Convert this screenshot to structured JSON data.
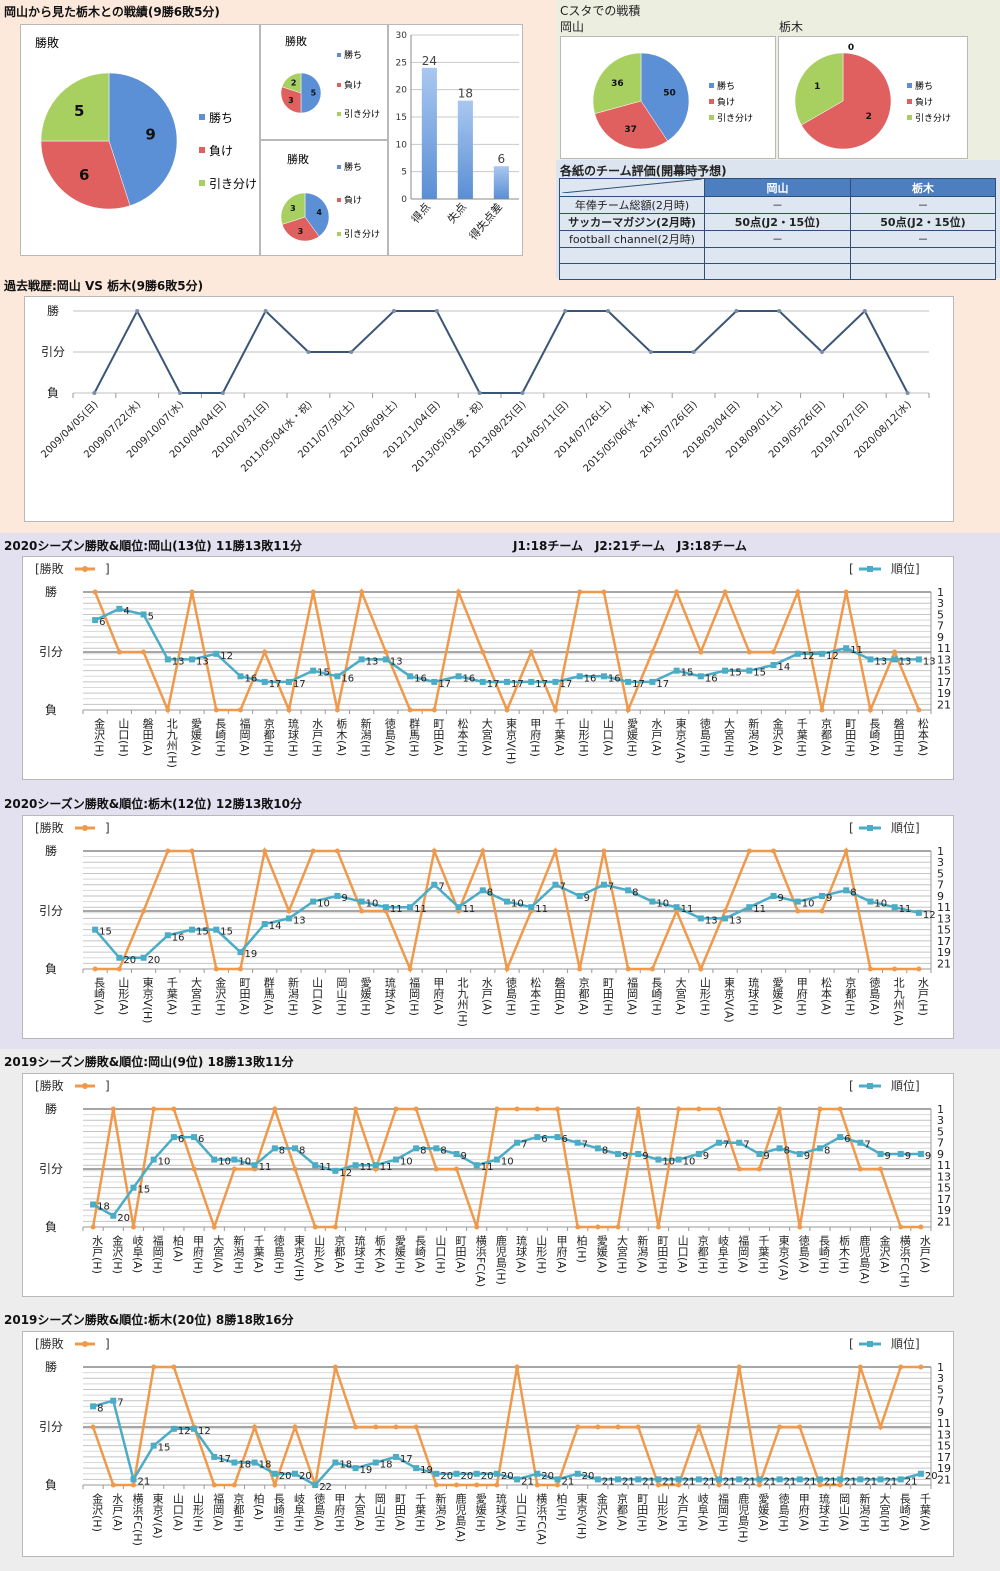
{
  "header": {
    "main_title": "岡山から見た栃木との戦績(9勝6敗5分)",
    "cstadium_title": "Cスタでの戦積",
    "okayama_label": "岡山",
    "tochigi_label": "栃木",
    "eval_title": "各紙のチーム評価(開幕時予想)",
    "history_title": "過去戦歴:岡山 VS 栃木(9勝6敗5分)",
    "league_info": "J1:18チーム　J2:21チーム　J3:18チーム"
  },
  "legend": {
    "win": "勝ち",
    "loss": "負け",
    "draw": "引き分け",
    "result_series": "勝敗",
    "rank_series": "順位"
  },
  "colors": {
    "win": "#5b8fd6",
    "loss": "#e06060",
    "draw": "#a8d060",
    "result_line": "#f0994a",
    "rank_line": "#4bacc6",
    "history_line": "#3b5577",
    "bar": "#5a8ed4"
  },
  "eval_table": {
    "headers": [
      "",
      "岡山",
      "栃木"
    ],
    "rows": [
      [
        "年俸チーム総額(2月時)",
        "－",
        "－"
      ],
      [
        "サッカーマガジン(2月時)",
        "50点(J2・15位)",
        "50点(J2・15位)"
      ],
      [
        "football channel(2月時)",
        "－",
        "－"
      ],
      [
        "",
        "",
        ""
      ],
      [
        "",
        "",
        ""
      ]
    ]
  },
  "chart_data": [
    {
      "id": "h2h-pie",
      "type": "pie",
      "title": "勝敗",
      "labels": [
        "勝ち",
        "負け",
        "引き分け"
      ],
      "values": [
        9,
        6,
        5
      ]
    },
    {
      "id": "h2h-pie-home",
      "type": "pie",
      "title": "勝敗",
      "labels": [
        "勝ち",
        "負け",
        "引き分け"
      ],
      "values": [
        5,
        3,
        2
      ]
    },
    {
      "id": "h2h-pie-away",
      "type": "pie",
      "title": "勝敗",
      "labels": [
        "勝ち",
        "負け",
        "引き分け"
      ],
      "values": [
        4,
        3,
        3
      ]
    },
    {
      "id": "h2h-goals",
      "type": "bar",
      "title": "",
      "categories": [
        "得点",
        "失点",
        "得失点差"
      ],
      "values": [
        24,
        18,
        6
      ],
      "ylim": [
        0,
        30
      ],
      "yticks": [
        0,
        5,
        10,
        15,
        20,
        25,
        30
      ]
    },
    {
      "id": "cstadium-okayama",
      "type": "pie",
      "title": "岡山",
      "labels": [
        "勝ち",
        "負け",
        "引き分け"
      ],
      "values": [
        50,
        37,
        36
      ]
    },
    {
      "id": "cstadium-tochigi",
      "type": "pie",
      "title": "栃木",
      "labels": [
        "勝ち",
        "負け",
        "引き分け"
      ],
      "values": [
        0,
        2,
        1
      ]
    },
    {
      "id": "history",
      "type": "line",
      "title": "過去戦歴:岡山 VS 栃木(9勝6敗5分)",
      "yticks": [
        "負",
        "引分",
        "勝"
      ],
      "x": [
        "2009/04/05(日)",
        "2009/07/22(水)",
        "2009/10/07(水)",
        "2010/04/04(日)",
        "2010/10/31(日)",
        "2011/05/04(水・祝)",
        "2011/07/30(土)",
        "2012/06/09(土)",
        "2012/11/04(日)",
        "2013/05/03(金・祝)",
        "2013/08/25(日)",
        "2014/05/11(日)",
        "2014/07/26(土)",
        "2015/05/06(水・休)",
        "2015/07/26(日)",
        "2018/03/04(日)",
        "2018/09/01(土)",
        "2019/05/26(日)",
        "2019/10/27(日)",
        "2020/08/12(水)"
      ],
      "results": [
        "L",
        "W",
        "L",
        "L",
        "W",
        "D",
        "D",
        "W",
        "W",
        "L",
        "L",
        "W",
        "W",
        "D",
        "D",
        "W",
        "W",
        "D",
        "W",
        "L"
      ]
    },
    {
      "id": "season-2020-okayama",
      "type": "line",
      "title": "2020シーズン勝敗&順位:岡山(13位) 11勝13敗11分",
      "left_yticks": [
        "負",
        "引分",
        "勝"
      ],
      "right_yticks": [
        1,
        3,
        5,
        7,
        9,
        11,
        13,
        15,
        17,
        19,
        21
      ],
      "rank_range": [
        1,
        22
      ],
      "x": [
        "金沢(H)",
        "山口(H)",
        "磐田(A)",
        "北九州(H)",
        "愛媛(A)",
        "長崎(H)",
        "福岡(A)",
        "京都(H)",
        "琉球(H)",
        "水戸(H)",
        "栃木(A)",
        "新潟(H)",
        "徳島(A)",
        "群馬(H)",
        "町田(A)",
        "松本(H)",
        "大宮(A)",
        "東京V(H)",
        "甲府(H)",
        "千葉(A)",
        "山形(H)",
        "山口(A)",
        "愛媛(H)",
        "水戸(A)",
        "東京V(A)",
        "徳島(H)",
        "大宮(H)",
        "新潟(A)",
        "金沢(A)",
        "千葉(H)",
        "京都(A)",
        "町田(H)",
        "長崎(A)",
        "磐田(H)",
        "松本(A)"
      ],
      "results": [
        "W",
        "D",
        "D",
        "L",
        "W",
        "L",
        "L",
        "D",
        "L",
        "W",
        "L",
        "W",
        "D",
        "L",
        "L",
        "W",
        "D",
        "L",
        "D",
        "L",
        "W",
        "W",
        "L",
        "D",
        "W",
        "D",
        "W",
        "D",
        "D",
        "W",
        "L",
        "W",
        "L",
        "D",
        "L"
      ],
      "ranks": [
        6,
        4,
        5,
        13,
        13,
        12,
        16,
        17,
        17,
        15,
        16,
        13,
        13,
        16,
        17,
        16,
        17,
        17,
        17,
        17,
        16,
        16,
        17,
        17,
        15,
        16,
        15,
        15,
        14,
        12,
        12,
        11,
        13,
        13,
        13
      ]
    },
    {
      "id": "season-2020-tochigi",
      "type": "line",
      "title": "2020シーズン勝敗&順位:栃木(12位) 12勝13敗10分",
      "left_yticks": [
        "負",
        "引分",
        "勝"
      ],
      "right_yticks": [
        1,
        3,
        5,
        7,
        9,
        11,
        13,
        15,
        17,
        19,
        21
      ],
      "rank_range": [
        1,
        22
      ],
      "x": [
        "長崎(A)",
        "山形(A)",
        "東京V(H)",
        "千葉(A)",
        "大宮(H)",
        "金沢(H)",
        "町田(A)",
        "群馬(A)",
        "新潟(H)",
        "山口(A)",
        "岡山(H)",
        "愛媛(H)",
        "琉球(A)",
        "福岡(H)",
        "甲府(A)",
        "北九州(H)",
        "水戸(A)",
        "徳島(H)",
        "松本(H)",
        "磐田(A)",
        "京都(A)",
        "町田(H)",
        "福岡(A)",
        "長崎(H)",
        "大宮(A)",
        "山形(H)",
        "東京V(A)",
        "琉球(H)",
        "愛媛(A)",
        "甲府(H)",
        "松本(A)",
        "京都(H)",
        "徳島(A)",
        "北九州(A)",
        "水戸(H)"
      ],
      "results": [
        "L",
        "L",
        "D",
        "W",
        "W",
        "L",
        "L",
        "W",
        "D",
        "W",
        "W",
        "D",
        "D",
        "L",
        "W",
        "D",
        "W",
        "L",
        "D",
        "W",
        "L",
        "W",
        "L",
        "L",
        "D",
        "L",
        "D",
        "W",
        "W",
        "D",
        "D",
        "W",
        "L",
        "L",
        "L"
      ],
      "ranks": [
        15,
        20,
        20,
        16,
        15,
        15,
        19,
        14,
        13,
        10,
        9,
        10,
        11,
        11,
        7,
        11,
        8,
        10,
        11,
        7,
        9,
        7,
        8,
        10,
        11,
        13,
        13,
        11,
        9,
        10,
        9,
        8,
        10,
        11,
        12
      ]
    },
    {
      "id": "season-2019-okayama",
      "type": "line",
      "title": "2019シーズン勝敗&順位:岡山(9位) 18勝13敗11分",
      "left_yticks": [
        "負",
        "引分",
        "勝"
      ],
      "right_yticks": [
        1,
        3,
        5,
        7,
        9,
        11,
        13,
        15,
        17,
        19,
        21
      ],
      "rank_range": [
        1,
        22
      ],
      "x": [
        "水戸(H)",
        "金沢(H)",
        "岐阜(A)",
        "福岡(H)",
        "柏(A)",
        "甲府(H)",
        "大宮(A)",
        "新潟(H)",
        "千葉(A)",
        "徳島(H)",
        "東京V(H)",
        "山形(A)",
        "京都(A)",
        "琉球(H)",
        "栃木(A)",
        "愛媛(H)",
        "長崎(A)",
        "山口(H)",
        "町田(A)",
        "横浜FC(A)",
        "鹿児島(H)",
        "琉球(A)",
        "山形(H)",
        "甲府(A)",
        "柏(H)",
        "愛媛(A)",
        "大宮(H)",
        "新潟(A)",
        "町田(H)",
        "山口(A)",
        "京都(H)",
        "岐阜(H)",
        "福岡(A)",
        "千葉(H)",
        "東京V(A)",
        "徳島(A)",
        "長崎(H)",
        "栃木(H)",
        "鹿児島(A)",
        "金沢(A)",
        "横浜FC(H)",
        "水戸(A)"
      ],
      "results": [
        "L",
        "W",
        "L",
        "W",
        "W",
        "D",
        "L",
        "D",
        "D",
        "W",
        "D",
        "L",
        "L",
        "W",
        "D",
        "W",
        "W",
        "D",
        "D",
        "L",
        "W",
        "W",
        "W",
        "W",
        "L",
        "L",
        "L",
        "W",
        "L",
        "W",
        "W",
        "W",
        "D",
        "D",
        "W",
        "L",
        "W",
        "W",
        "D",
        "D",
        "L",
        "L"
      ],
      "ranks": [
        18,
        20,
        15,
        10,
        6,
        6,
        10,
        10,
        11,
        8,
        8,
        11,
        12,
        11,
        11,
        10,
        8,
        8,
        9,
        11,
        10,
        7,
        6,
        6,
        7,
        8,
        9,
        9,
        10,
        10,
        9,
        7,
        7,
        9,
        8,
        9,
        8,
        6,
        7,
        9,
        9,
        9
      ]
    },
    {
      "id": "season-2019-tochigi",
      "type": "line",
      "title": "2019シーズン勝敗&順位:栃木(20位) 8勝18敗16分",
      "left_yticks": [
        "負",
        "引分",
        "勝"
      ],
      "right_yticks": [
        1,
        3,
        5,
        7,
        9,
        11,
        13,
        15,
        17,
        19,
        21
      ],
      "rank_range": [
        1,
        22
      ],
      "x": [
        "金沢(H)",
        "水戸(A)",
        "横浜FC(H)",
        "東京V(A)",
        "山口(A)",
        "山形(H)",
        "福岡(A)",
        "京都(H)",
        "柏(A)",
        "長崎(H)",
        "岐阜(H)",
        "徳島(A)",
        "甲府(H)",
        "大宮(A)",
        "岡山(H)",
        "町田(A)",
        "千葉(H)",
        "新潟(A)",
        "鹿児島(A)",
        "愛媛(H)",
        "琉球(A)",
        "山口(H)",
        "横浜FC(A)",
        "柏(H)",
        "東京V(H)",
        "金沢(A)",
        "京都(A)",
        "町田(H)",
        "山形(A)",
        "水戸(H)",
        "岐阜(A)",
        "福岡(H)",
        "鹿児島(H)",
        "愛媛(A)",
        "徳島(H)",
        "甲府(A)",
        "琉球(H)",
        "岡山(A)",
        "新潟(H)",
        "大宮(H)",
        "長崎(A)",
        "千葉(A)"
      ],
      "results": [
        "D",
        "L",
        "L",
        "W",
        "W",
        "D",
        "L",
        "L",
        "D",
        "L",
        "D",
        "L",
        "W",
        "D",
        "D",
        "D",
        "D",
        "L",
        "L",
        "L",
        "L",
        "W",
        "L",
        "L",
        "D",
        "D",
        "D",
        "D",
        "L",
        "L",
        "D",
        "L",
        "W",
        "L",
        "D",
        "D",
        "L",
        "L",
        "W",
        "D",
        "W",
        "W"
      ],
      "ranks": [
        8,
        7,
        21,
        15,
        12,
        12,
        17,
        18,
        18,
        20,
        20,
        22,
        18,
        19,
        18,
        17,
        19,
        20,
        20,
        20,
        20,
        21,
        20,
        21,
        20,
        21,
        21,
        21,
        21,
        21,
        21,
        21,
        21,
        21,
        21,
        21,
        21,
        21,
        21,
        21,
        21,
        20
      ]
    }
  ]
}
